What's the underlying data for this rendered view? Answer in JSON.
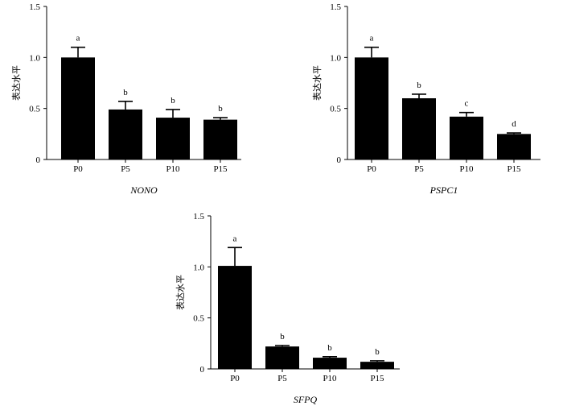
{
  "chart_data": [
    {
      "type": "bar",
      "title": "NONO",
      "ylabel": "表达水平",
      "xlabel": "",
      "categories": [
        "P0",
        "P5",
        "P10",
        "P15"
      ],
      "values": [
        1.0,
        0.49,
        0.41,
        0.39
      ],
      "error": [
        0.1,
        0.08,
        0.08,
        0.02
      ],
      "significance": [
        "a",
        "b",
        "b",
        "b"
      ],
      "ylim": [
        0,
        1.5
      ],
      "yticks": [
        "0",
        "0.5",
        "1.0",
        "1.5"
      ],
      "grid": false
    },
    {
      "type": "bar",
      "title": "PSPC1",
      "ylabel": "表达水平",
      "xlabel": "",
      "categories": [
        "P0",
        "P5",
        "P10",
        "P15"
      ],
      "values": [
        1.0,
        0.6,
        0.42,
        0.25
      ],
      "error": [
        0.1,
        0.04,
        0.04,
        0.01
      ],
      "significance": [
        "a",
        "b",
        "c",
        "d"
      ],
      "ylim": [
        0,
        1.5
      ],
      "yticks": [
        "0",
        "0.5",
        "1.0",
        "1.5"
      ],
      "grid": false
    },
    {
      "type": "bar",
      "title": "SFPQ",
      "ylabel": "表达水平",
      "xlabel": "",
      "categories": [
        "P0",
        "P5",
        "P10",
        "P15"
      ],
      "values": [
        1.01,
        0.22,
        0.11,
        0.07
      ],
      "error": [
        0.18,
        0.01,
        0.01,
        0.01
      ],
      "significance": [
        "a",
        "b",
        "b",
        "b"
      ],
      "ylim": [
        0,
        1.5
      ],
      "yticks": [
        "0",
        "0.5",
        "1.0",
        "1.5"
      ],
      "grid": false
    }
  ]
}
